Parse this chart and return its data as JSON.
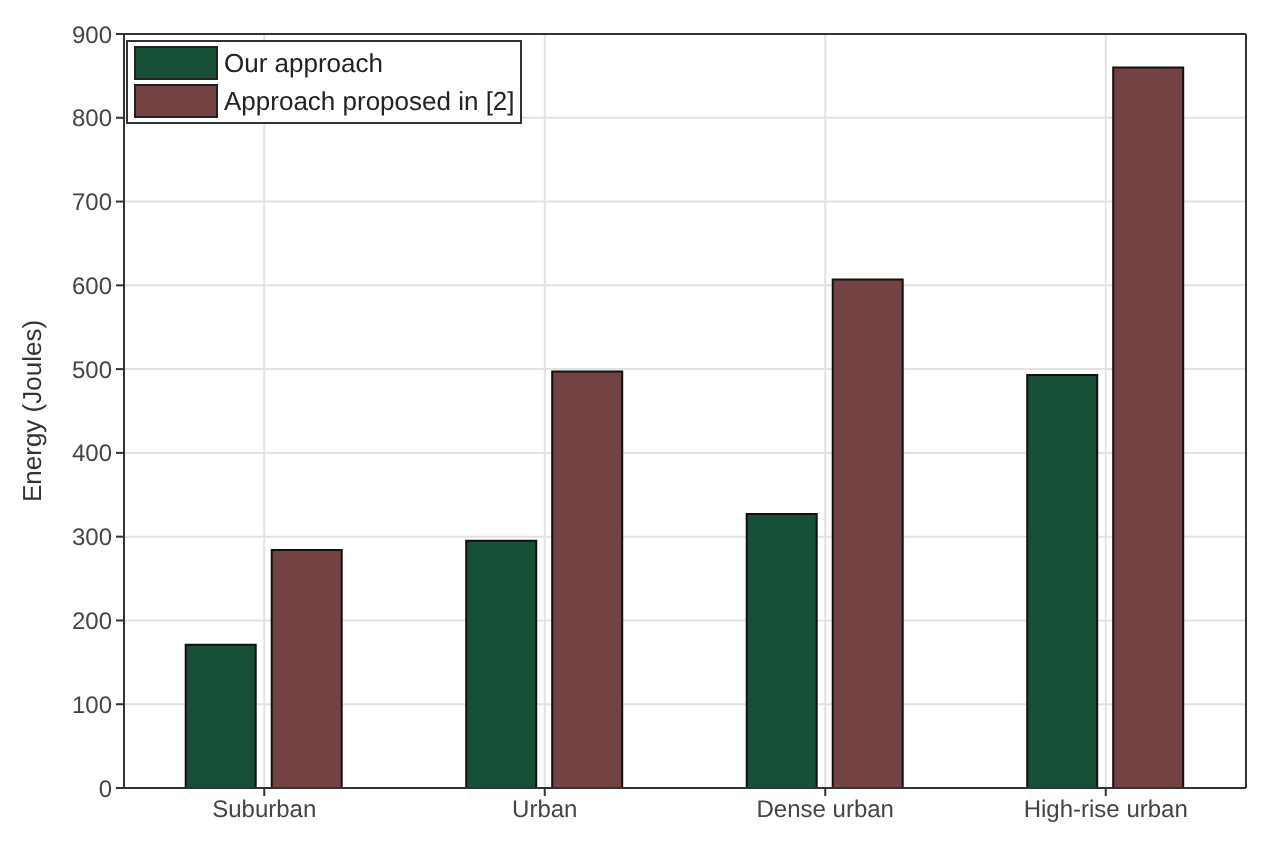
{
  "chart_data": {
    "type": "bar",
    "ylabel": "Energy (Joules)",
    "categories": [
      "Suburban",
      "Urban",
      "Dense urban",
      "High-rise urban"
    ],
    "series": [
      {
        "name": "Our approach",
        "color": "#174f36",
        "values": [
          171,
          295,
          327,
          493
        ]
      },
      {
        "name": "Approach proposed in [2]",
        "color": "#734344",
        "values": [
          284,
          497,
          607,
          860
        ]
      }
    ],
    "ylim": [
      0,
      900
    ],
    "yticks": [
      0,
      100,
      200,
      300,
      400,
      500,
      600,
      700,
      800,
      900
    ],
    "grid": true,
    "legend": "top left"
  }
}
